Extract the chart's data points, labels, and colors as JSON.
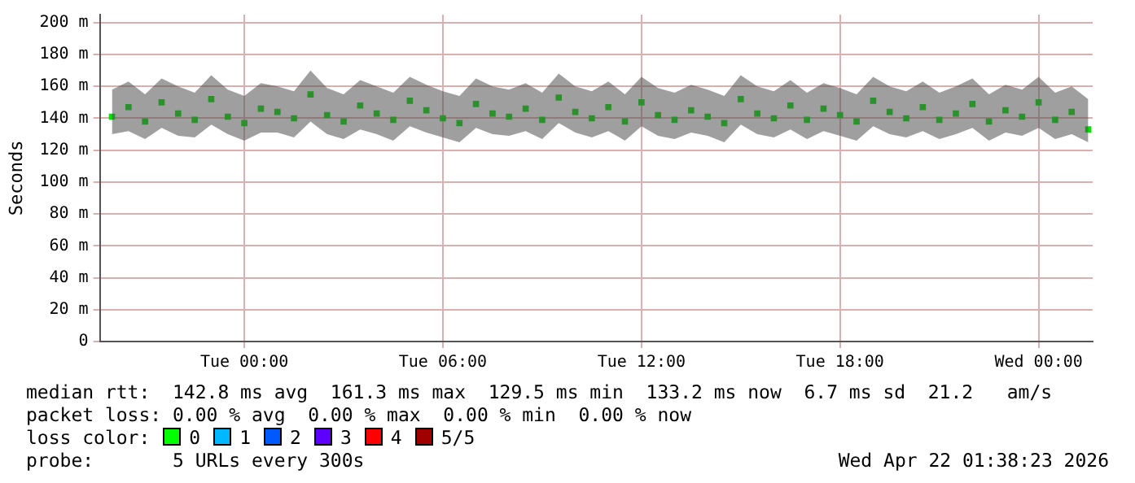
{
  "chart_data": {
    "type": "scatter",
    "ylabel": "Seconds",
    "x": [
      "2026-04-20T20:00",
      "2026-04-20T20:30",
      "2026-04-20T21:00",
      "2026-04-20T21:30",
      "2026-04-20T22:00",
      "2026-04-20T22:30",
      "2026-04-20T23:00",
      "2026-04-20T23:30",
      "2026-04-21T00:00",
      "2026-04-21T00:30",
      "2026-04-21T01:00",
      "2026-04-21T01:30",
      "2026-04-21T02:00",
      "2026-04-21T02:30",
      "2026-04-21T03:00",
      "2026-04-21T03:30",
      "2026-04-21T04:00",
      "2026-04-21T04:30",
      "2026-04-21T05:00",
      "2026-04-21T05:30",
      "2026-04-21T06:00",
      "2026-04-21T06:30",
      "2026-04-21T07:00",
      "2026-04-21T07:30",
      "2026-04-21T08:00",
      "2026-04-21T08:30",
      "2026-04-21T09:00",
      "2026-04-21T09:30",
      "2026-04-21T10:00",
      "2026-04-21T10:30",
      "2026-04-21T11:00",
      "2026-04-21T11:30",
      "2026-04-21T12:00",
      "2026-04-21T12:30",
      "2026-04-21T13:00",
      "2026-04-21T13:30",
      "2026-04-21T14:00",
      "2026-04-21T14:30",
      "2026-04-21T15:00",
      "2026-04-21T15:30",
      "2026-04-21T16:00",
      "2026-04-21T16:30",
      "2026-04-21T17:00",
      "2026-04-21T17:30",
      "2026-04-21T18:00",
      "2026-04-21T18:30",
      "2026-04-21T19:00",
      "2026-04-21T19:30",
      "2026-04-21T20:00",
      "2026-04-21T20:30",
      "2026-04-21T21:00",
      "2026-04-21T21:30",
      "2026-04-21T22:00",
      "2026-04-21T22:30",
      "2026-04-21T23:00",
      "2026-04-21T23:30",
      "2026-04-22T00:00",
      "2026-04-22T00:30",
      "2026-04-22T01:00",
      "2026-04-22T01:30"
    ],
    "series": [
      {
        "color": "#00e000",
        "values": [
          141,
          147,
          138,
          150,
          143,
          139,
          152,
          141,
          137,
          146,
          144,
          140,
          155,
          142,
          138,
          148,
          143,
          139,
          151,
          145,
          140,
          137,
          149,
          143,
          141,
          146,
          139,
          153,
          144,
          140,
          147,
          138,
          150,
          142,
          139,
          145,
          141,
          137,
          152,
          143,
          140,
          148,
          139,
          146,
          142,
          138,
          151,
          144,
          140,
          147,
          139,
          143,
          149,
          138,
          145,
          141,
          150,
          139,
          144,
          133
        ],
        "lower": [
          130,
          132,
          127,
          134,
          129,
          128,
          136,
          130,
          126,
          131,
          131,
          128,
          138,
          130,
          127,
          133,
          130,
          126,
          135,
          131,
          128,
          125,
          134,
          130,
          129,
          132,
          127,
          137,
          131,
          128,
          132,
          126,
          135,
          129,
          127,
          131,
          129,
          125,
          136,
          130,
          128,
          133,
          127,
          132,
          129,
          126,
          135,
          130,
          128,
          132,
          127,
          130,
          134,
          126,
          131,
          129,
          134,
          127,
          130,
          125
        ],
        "upper": [
          158,
          163,
          155,
          165,
          160,
          156,
          167,
          158,
          154,
          162,
          160,
          157,
          170,
          159,
          155,
          164,
          160,
          156,
          166,
          161,
          157,
          154,
          165,
          160,
          158,
          162,
          156,
          168,
          160,
          157,
          163,
          155,
          166,
          159,
          156,
          161,
          158,
          154,
          167,
          160,
          157,
          164,
          156,
          162,
          159,
          155,
          166,
          160,
          157,
          163,
          156,
          160,
          165,
          155,
          161,
          158,
          166,
          156,
          160,
          152
        ]
      }
    ],
    "marker": "square",
    "xlim": [
      "2026-04-20T19:38",
      "2026-04-22T01:38"
    ],
    "xticks": [
      {
        "value": "2026-04-21T00:00",
        "label": "Tue 00:00"
      },
      {
        "value": "2026-04-21T06:00",
        "label": "Tue 06:00"
      },
      {
        "value": "2026-04-21T12:00",
        "label": "Tue 12:00"
      },
      {
        "value": "2026-04-21T18:00",
        "label": "Tue 18:00"
      },
      {
        "value": "2026-04-22T00:00",
        "label": "Wed 00:00"
      }
    ],
    "ylim": [
      0,
      205
    ],
    "yticks": [
      {
        "value": 0,
        "label": "0"
      },
      {
        "value": 20,
        "label": "20 m"
      },
      {
        "value": 40,
        "label": "40 m"
      },
      {
        "value": 60,
        "label": "60 m"
      },
      {
        "value": 80,
        "label": "80 m"
      },
      {
        "value": 100,
        "label": "100 m"
      },
      {
        "value": 120,
        "label": "120 m"
      },
      {
        "value": 140,
        "label": "140 m"
      },
      {
        "value": 160,
        "label": "160 m"
      },
      {
        "value": 180,
        "label": "180 m"
      },
      {
        "value": 200,
        "label": "200 m"
      }
    ],
    "grid": true,
    "annotations": [
      "median rtt:  142.8 ms avg  161.3 ms max  129.5 ms min  133.2 ms now  6.7 ms sd  21.2   am/s",
      "packet loss: 0.00 % avg  0.00 % max  0.00 % min  0.00 % now",
      "loss color:",
      "0",
      "1",
      "2",
      "3",
      "4",
      "5/5",
      "probe:       5 URLs every 300s",
      "Wed Apr 22 01:38:23 2026"
    ]
  }
}
